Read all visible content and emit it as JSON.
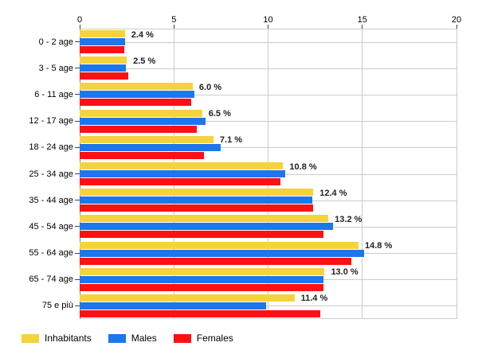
{
  "chart_data": {
    "type": "bar",
    "orientation": "horizontal",
    "x_axis_position": "top",
    "title": "",
    "xlabel": "",
    "ylabel": "",
    "xlim": [
      0,
      20
    ],
    "x_ticks": [
      0,
      5,
      10,
      15,
      20
    ],
    "grid": true,
    "categories": [
      "0 - 2 age",
      "3 - 5 age",
      "6 - 11 age",
      "12 - 17 age",
      "18 - 24 age",
      "25 - 34 age",
      "35 - 44 age",
      "45 - 54 age",
      "55 - 64 age",
      "65 - 74 age",
      "75 e più"
    ],
    "series": [
      {
        "name": "Inhabitants",
        "color": "#F6D33C",
        "values": [
          2.4,
          2.5,
          6.0,
          6.5,
          7.1,
          10.8,
          12.4,
          13.2,
          14.8,
          13.0,
          11.4
        ]
      },
      {
        "name": "Males",
        "color": "#1C76EE",
        "values": [
          2.4,
          2.45,
          6.1,
          6.7,
          7.5,
          10.9,
          12.35,
          13.45,
          15.1,
          12.95,
          9.9
        ]
      },
      {
        "name": "Females",
        "color": "#FD1014",
        "values": [
          2.35,
          2.6,
          5.9,
          6.2,
          6.6,
          10.65,
          12.4,
          12.95,
          14.4,
          12.95,
          12.75
        ]
      }
    ],
    "bar_labels": [
      "2.4 %",
      "2.5 %",
      "6.0 %",
      "6.5 %",
      "7.1 %",
      "10.8 %",
      "12.4 %",
      "13.2 %",
      "14.8 %",
      "13.0 %",
      "11.4 %"
    ],
    "legend": {
      "position": "bottom-left",
      "entries": [
        "Inhabitants",
        "Males",
        "Females"
      ]
    }
  },
  "colors": {
    "background": "#FFFFFF",
    "gridline": "#CCCCCC",
    "axis_line": "#888888",
    "tick": "#444444",
    "axis_text": "#000000",
    "bar_label": "#222222"
  }
}
